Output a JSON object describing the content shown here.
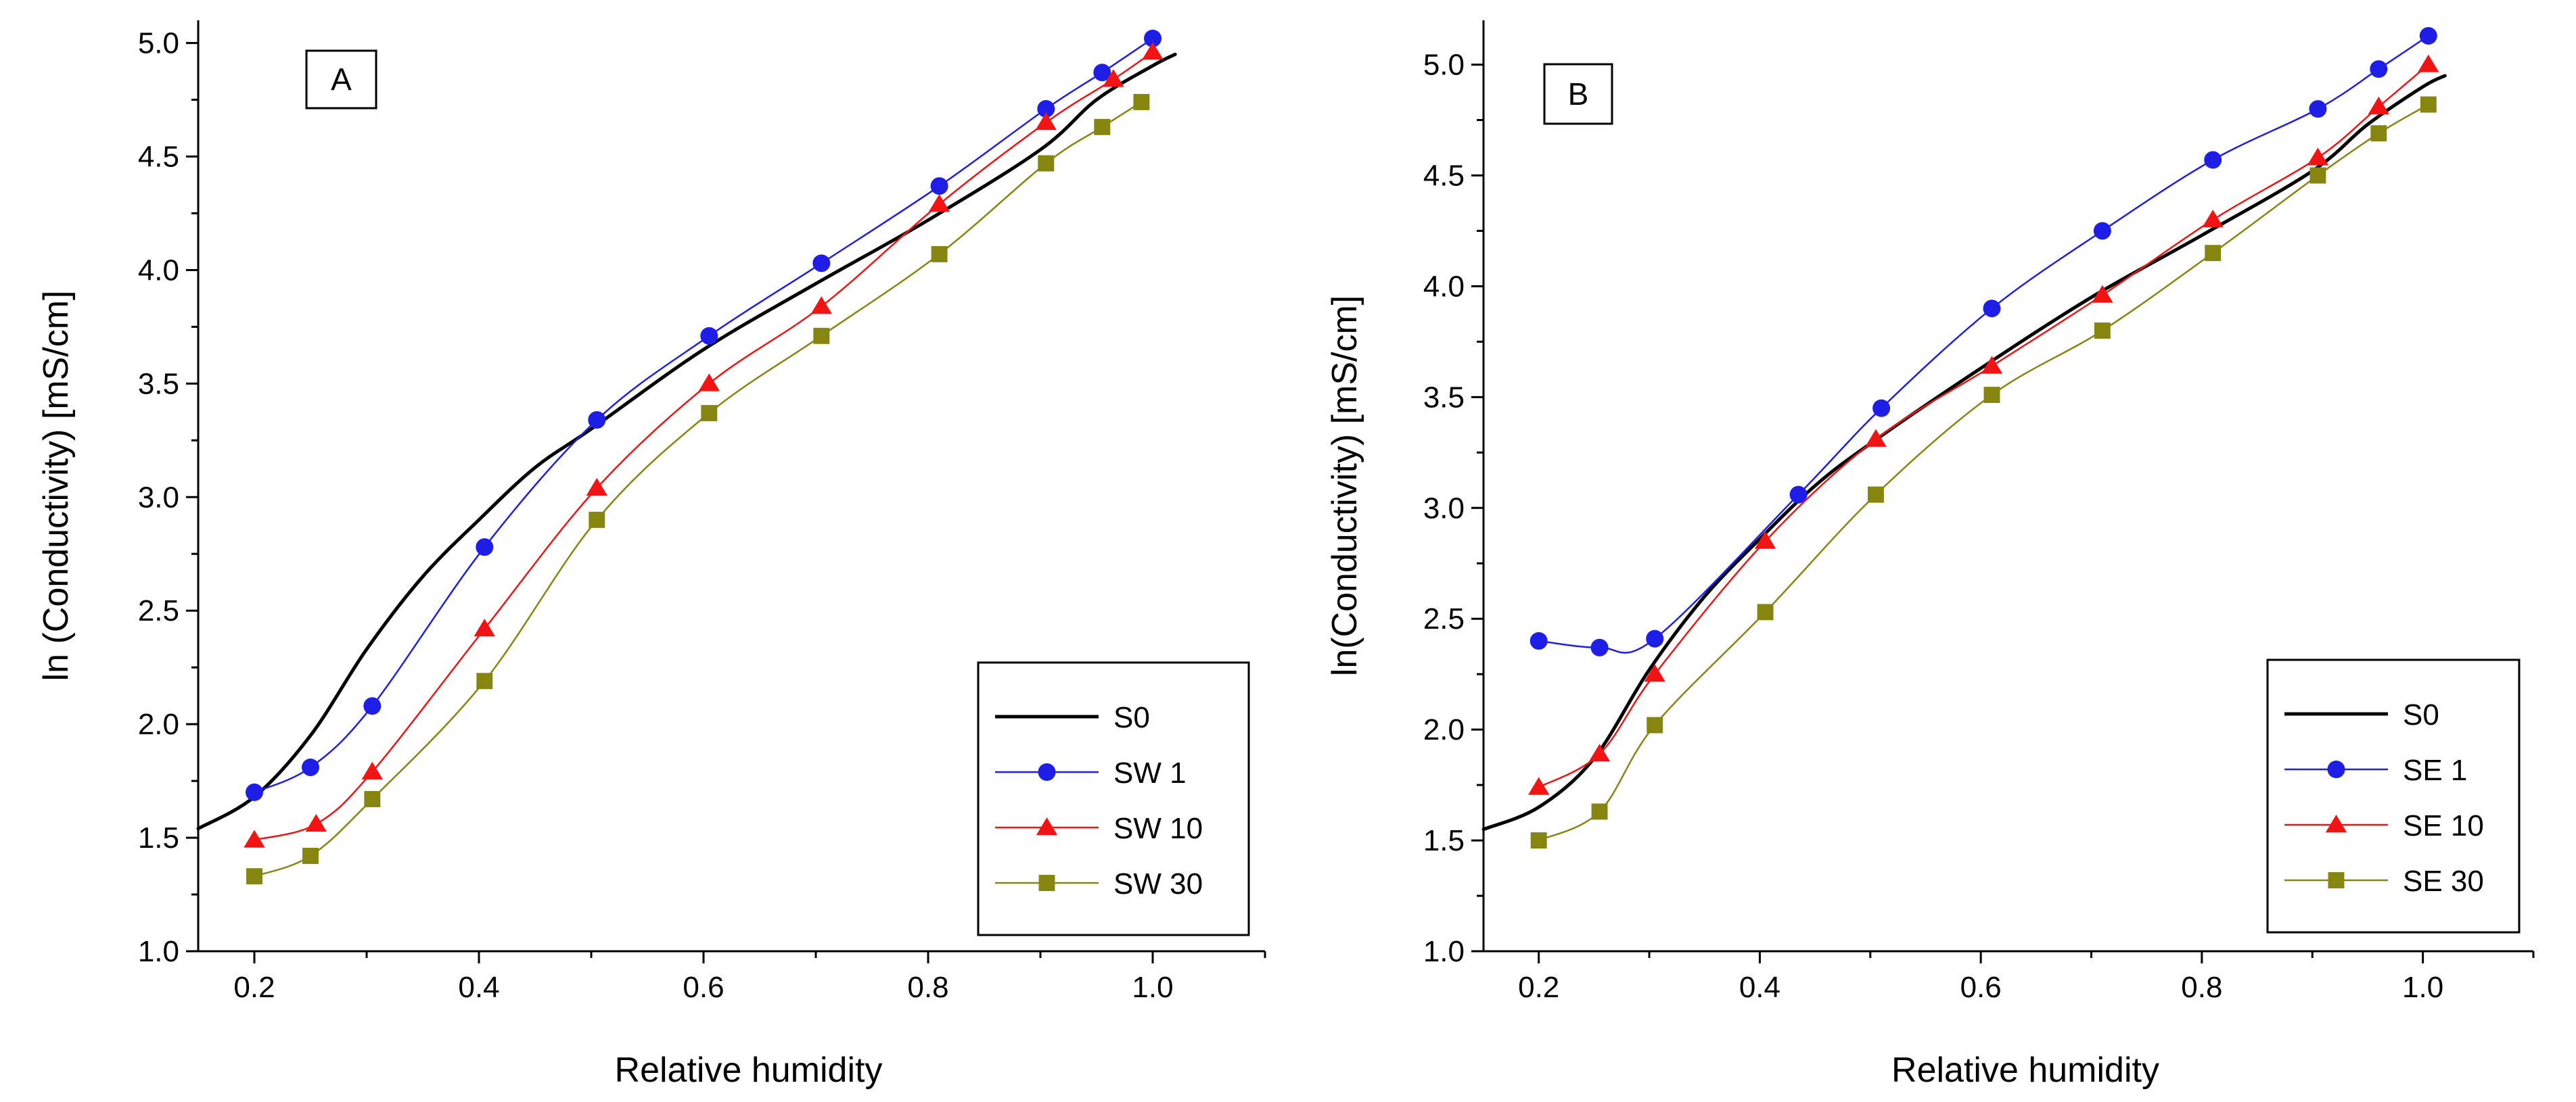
{
  "chart_data": [
    {
      "type": "line",
      "panel_label": "A",
      "xlabel": "Relative humidity",
      "ylabel": "ln (Conductivity) [mS/cm]",
      "xlim": [
        0.15,
        1.1
      ],
      "ylim": [
        1.0,
        5.1
      ],
      "xticks": [
        0.2,
        0.4,
        0.6,
        0.8,
        1.0
      ],
      "xtick_labels": [
        "0.2",
        "0.4",
        "0.6",
        "0.8",
        "1.0"
      ],
      "yticks": [
        1.0,
        1.5,
        2.0,
        2.5,
        3.0,
        3.5,
        4.0,
        4.5,
        5.0
      ],
      "ytick_labels": [
        "1.0",
        "1.5",
        "2.0",
        "2.5",
        "3.0",
        "3.5",
        "4.0",
        "4.5",
        "5.0"
      ],
      "grid": false,
      "legend_position": "bottom-right",
      "series": [
        {
          "name": "S0",
          "color": "#000000",
          "marker": "none",
          "x": [
            0.15,
            0.2,
            0.25,
            0.3,
            0.35,
            0.4,
            0.45,
            0.5,
            0.6,
            0.7,
            0.8,
            0.9,
            0.95,
            1.0,
            1.02
          ],
          "y": [
            1.54,
            1.68,
            1.95,
            2.33,
            2.65,
            2.9,
            3.13,
            3.3,
            3.65,
            3.94,
            4.22,
            4.53,
            4.75,
            4.9,
            4.95
          ]
        },
        {
          "name": "SW 1",
          "color": "#1e1ee6",
          "marker": "circle",
          "x": [
            0.2,
            0.25,
            0.305,
            0.405,
            0.505,
            0.605,
            0.705,
            0.81,
            0.905,
            0.955,
            1.0
          ],
          "y": [
            1.7,
            1.81,
            2.08,
            2.78,
            3.34,
            3.71,
            4.03,
            4.37,
            4.71,
            4.87,
            5.02
          ]
        },
        {
          "name": "SW 10",
          "color": "#f01414",
          "marker": "triangle",
          "x": [
            0.2,
            0.255,
            0.305,
            0.405,
            0.505,
            0.605,
            0.705,
            0.81,
            0.905,
            0.965,
            1.0
          ],
          "y": [
            1.49,
            1.56,
            1.79,
            2.42,
            3.04,
            3.5,
            3.84,
            4.29,
            4.65,
            4.84,
            4.96
          ]
        },
        {
          "name": "SW 30",
          "color": "#858510",
          "marker": "square",
          "x": [
            0.2,
            0.25,
            0.305,
            0.405,
            0.505,
            0.605,
            0.705,
            0.81,
            0.905,
            0.955,
            0.99
          ],
          "y": [
            1.33,
            1.42,
            1.67,
            2.19,
            2.9,
            3.37,
            3.71,
            4.07,
            4.47,
            4.63,
            4.74
          ]
        }
      ]
    },
    {
      "type": "line",
      "panel_label": "B",
      "xlabel": "Relative humidity",
      "ylabel": "ln(Conductivity) [mS/cm]",
      "xlim": [
        0.15,
        1.1
      ],
      "ylim": [
        1.0,
        5.2
      ],
      "xticks": [
        0.2,
        0.4,
        0.6,
        0.8,
        1.0
      ],
      "xtick_labels": [
        "0.2",
        "0.4",
        "0.6",
        "0.8",
        "1.0"
      ],
      "yticks": [
        1.0,
        1.5,
        2.0,
        2.5,
        3.0,
        3.5,
        4.0,
        4.5,
        5.0
      ],
      "ytick_labels": [
        "1.0",
        "1.5",
        "2.0",
        "2.5",
        "3.0",
        "3.5",
        "4.0",
        "4.5",
        "5.0"
      ],
      "grid": false,
      "legend_position": "bottom-right",
      "series": [
        {
          "name": "S0",
          "color": "#000000",
          "marker": "none",
          "x": [
            0.15,
            0.2,
            0.25,
            0.3,
            0.35,
            0.4,
            0.45,
            0.5,
            0.6,
            0.7,
            0.8,
            0.9,
            0.95,
            1.0,
            1.02
          ],
          "y": [
            1.55,
            1.65,
            1.87,
            2.27,
            2.6,
            2.86,
            3.1,
            3.29,
            3.63,
            3.95,
            4.23,
            4.52,
            4.73,
            4.9,
            4.95
          ]
        },
        {
          "name": "SE 1",
          "color": "#1e1ee6",
          "marker": "circle",
          "x": [
            0.2,
            0.255,
            0.305,
            0.435,
            0.51,
            0.61,
            0.71,
            0.81,
            0.905,
            0.96,
            1.005
          ],
          "y": [
            2.4,
            2.37,
            2.41,
            3.06,
            3.45,
            3.9,
            4.25,
            4.57,
            4.8,
            4.98,
            5.13
          ]
        },
        {
          "name": "SE 10",
          "color": "#f01414",
          "marker": "triangle",
          "x": [
            0.2,
            0.255,
            0.305,
            0.405,
            0.505,
            0.61,
            0.71,
            0.81,
            0.905,
            0.96,
            1.005
          ],
          "y": [
            1.74,
            1.89,
            2.25,
            2.85,
            3.31,
            3.64,
            3.96,
            4.3,
            4.58,
            4.81,
            5.0
          ]
        },
        {
          "name": "SE 30",
          "color": "#858510",
          "marker": "square",
          "x": [
            0.2,
            0.255,
            0.305,
            0.405,
            0.505,
            0.61,
            0.71,
            0.81,
            0.905,
            0.96,
            1.005
          ],
          "y": [
            1.5,
            1.63,
            2.02,
            2.53,
            3.06,
            3.51,
            3.8,
            4.15,
            4.5,
            4.69,
            4.82
          ]
        }
      ]
    }
  ]
}
